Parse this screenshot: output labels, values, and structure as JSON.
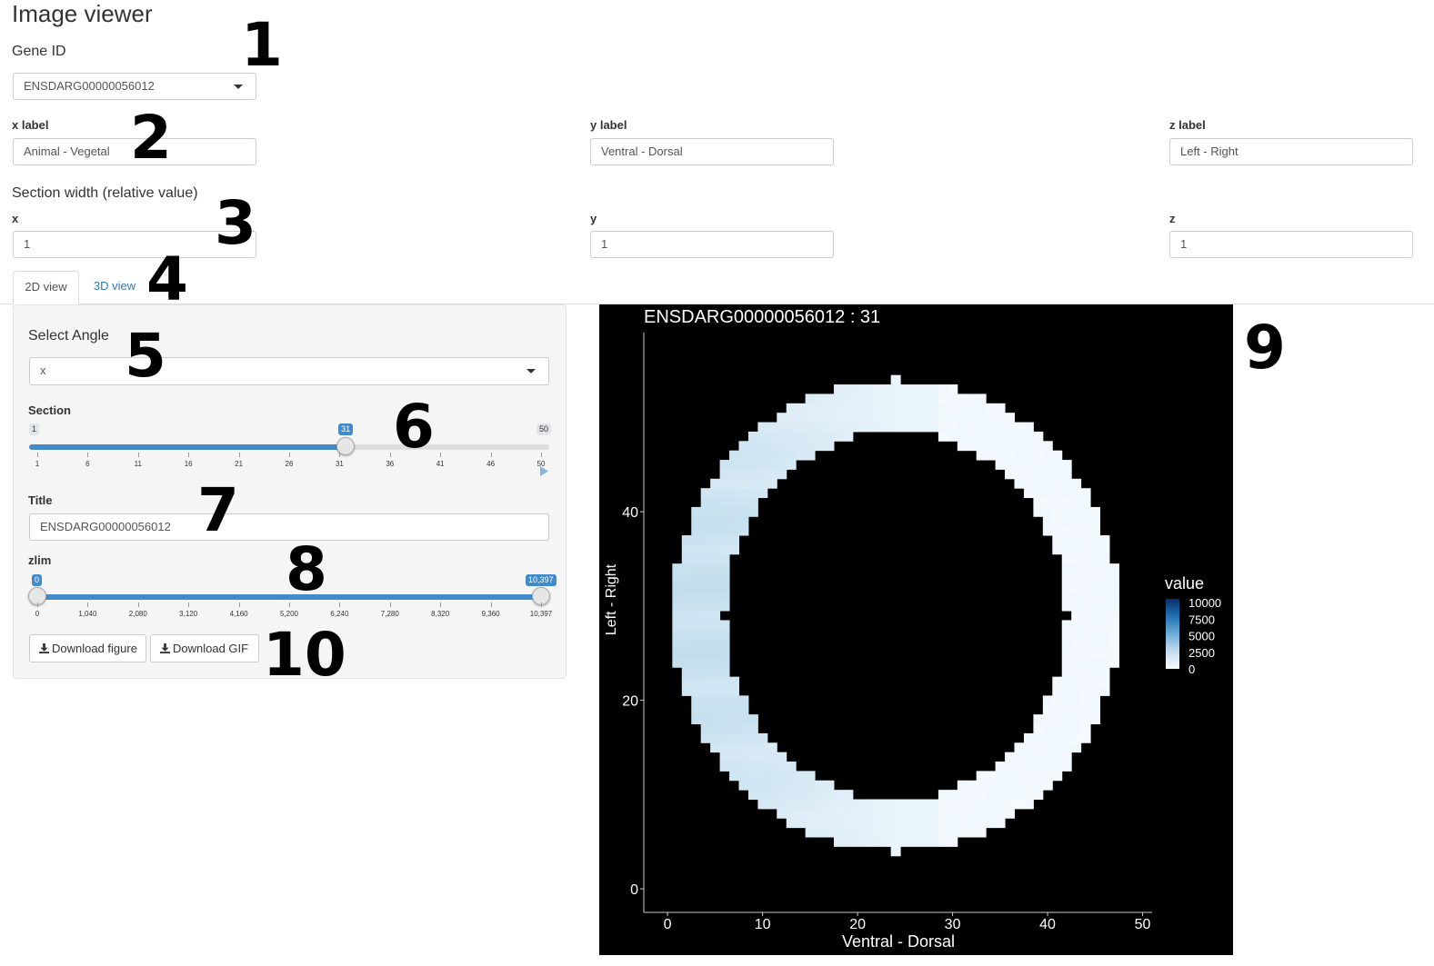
{
  "app": {
    "title": "Image viewer"
  },
  "gene": {
    "label": "Gene ID",
    "value": "ENSDARG00000056012"
  },
  "axis_labels": {
    "x": {
      "label": "x label",
      "value": "Animal - Vegetal"
    },
    "y": {
      "label": "y label",
      "value": "Ventral - Dorsal"
    },
    "z": {
      "label": "z label",
      "value": "Left - Right"
    }
  },
  "section_width": {
    "heading": "Section width (relative value)",
    "x": {
      "label": "x",
      "value": "1"
    },
    "y": {
      "label": "y",
      "value": "1"
    },
    "z": {
      "label": "z",
      "value": "1"
    }
  },
  "tabs": [
    {
      "label": "2D view",
      "active": true
    },
    {
      "label": "3D view",
      "active": false
    }
  ],
  "controls": {
    "angle": {
      "label": "Select Angle",
      "value": "x"
    },
    "section": {
      "label": "Section",
      "min": 1,
      "max": 50,
      "value": 31,
      "min_label": "1",
      "max_label": "50",
      "value_label": "31",
      "ticks": [
        "1",
        "6",
        "11",
        "16",
        "21",
        "26",
        "31",
        "36",
        "41",
        "46",
        "50"
      ]
    },
    "title": {
      "label": "Title",
      "value": "ENSDARG00000056012"
    },
    "zlim": {
      "label": "zlim",
      "min": 0,
      "max": 10397,
      "low": 0,
      "high": 10397,
      "low_label": "0",
      "high_label": "10,397",
      "ticks": [
        "0",
        "1,040",
        "2,080",
        "3,120",
        "4,160",
        "5,200",
        "6,240",
        "7,280",
        "8,320",
        "9,360",
        "10,397"
      ]
    },
    "download_figure": "Download figure",
    "download_gif": "Download GIF"
  },
  "markers": [
    "1",
    "2",
    "3",
    "4",
    "5",
    "6",
    "7",
    "8",
    "9",
    "10"
  ],
  "colors": {
    "accent": "#428bca",
    "link": "#337ab7",
    "plot_bg": "#000000"
  },
  "chart_data": {
    "type": "heatmap",
    "title": "ENSDARG00000056012 : 31",
    "xlabel": "Ventral - Dorsal",
    "ylabel": "Left - Right",
    "xlim": [
      -2.5,
      51
    ],
    "ylim": [
      -2.5,
      59
    ],
    "xticks": [
      0,
      10,
      20,
      30,
      40,
      50
    ],
    "yticks": [
      0,
      20,
      40
    ],
    "legend": {
      "title": "value",
      "placement": "right",
      "breaks": [
        "10000",
        "7500",
        "5000",
        "2500",
        "0"
      ]
    },
    "shape": "ring",
    "ring_center": [
      24,
      29
    ],
    "ring_outer_radius": [
      23.5,
      25
    ],
    "ring_inner_radius": [
      18,
      19.5
    ],
    "value_range": [
      0,
      10397
    ],
    "color_scale": [
      "#f7fbff",
      "#c6dbef",
      "#6baed6",
      "#2171b5",
      "#08306b"
    ]
  }
}
